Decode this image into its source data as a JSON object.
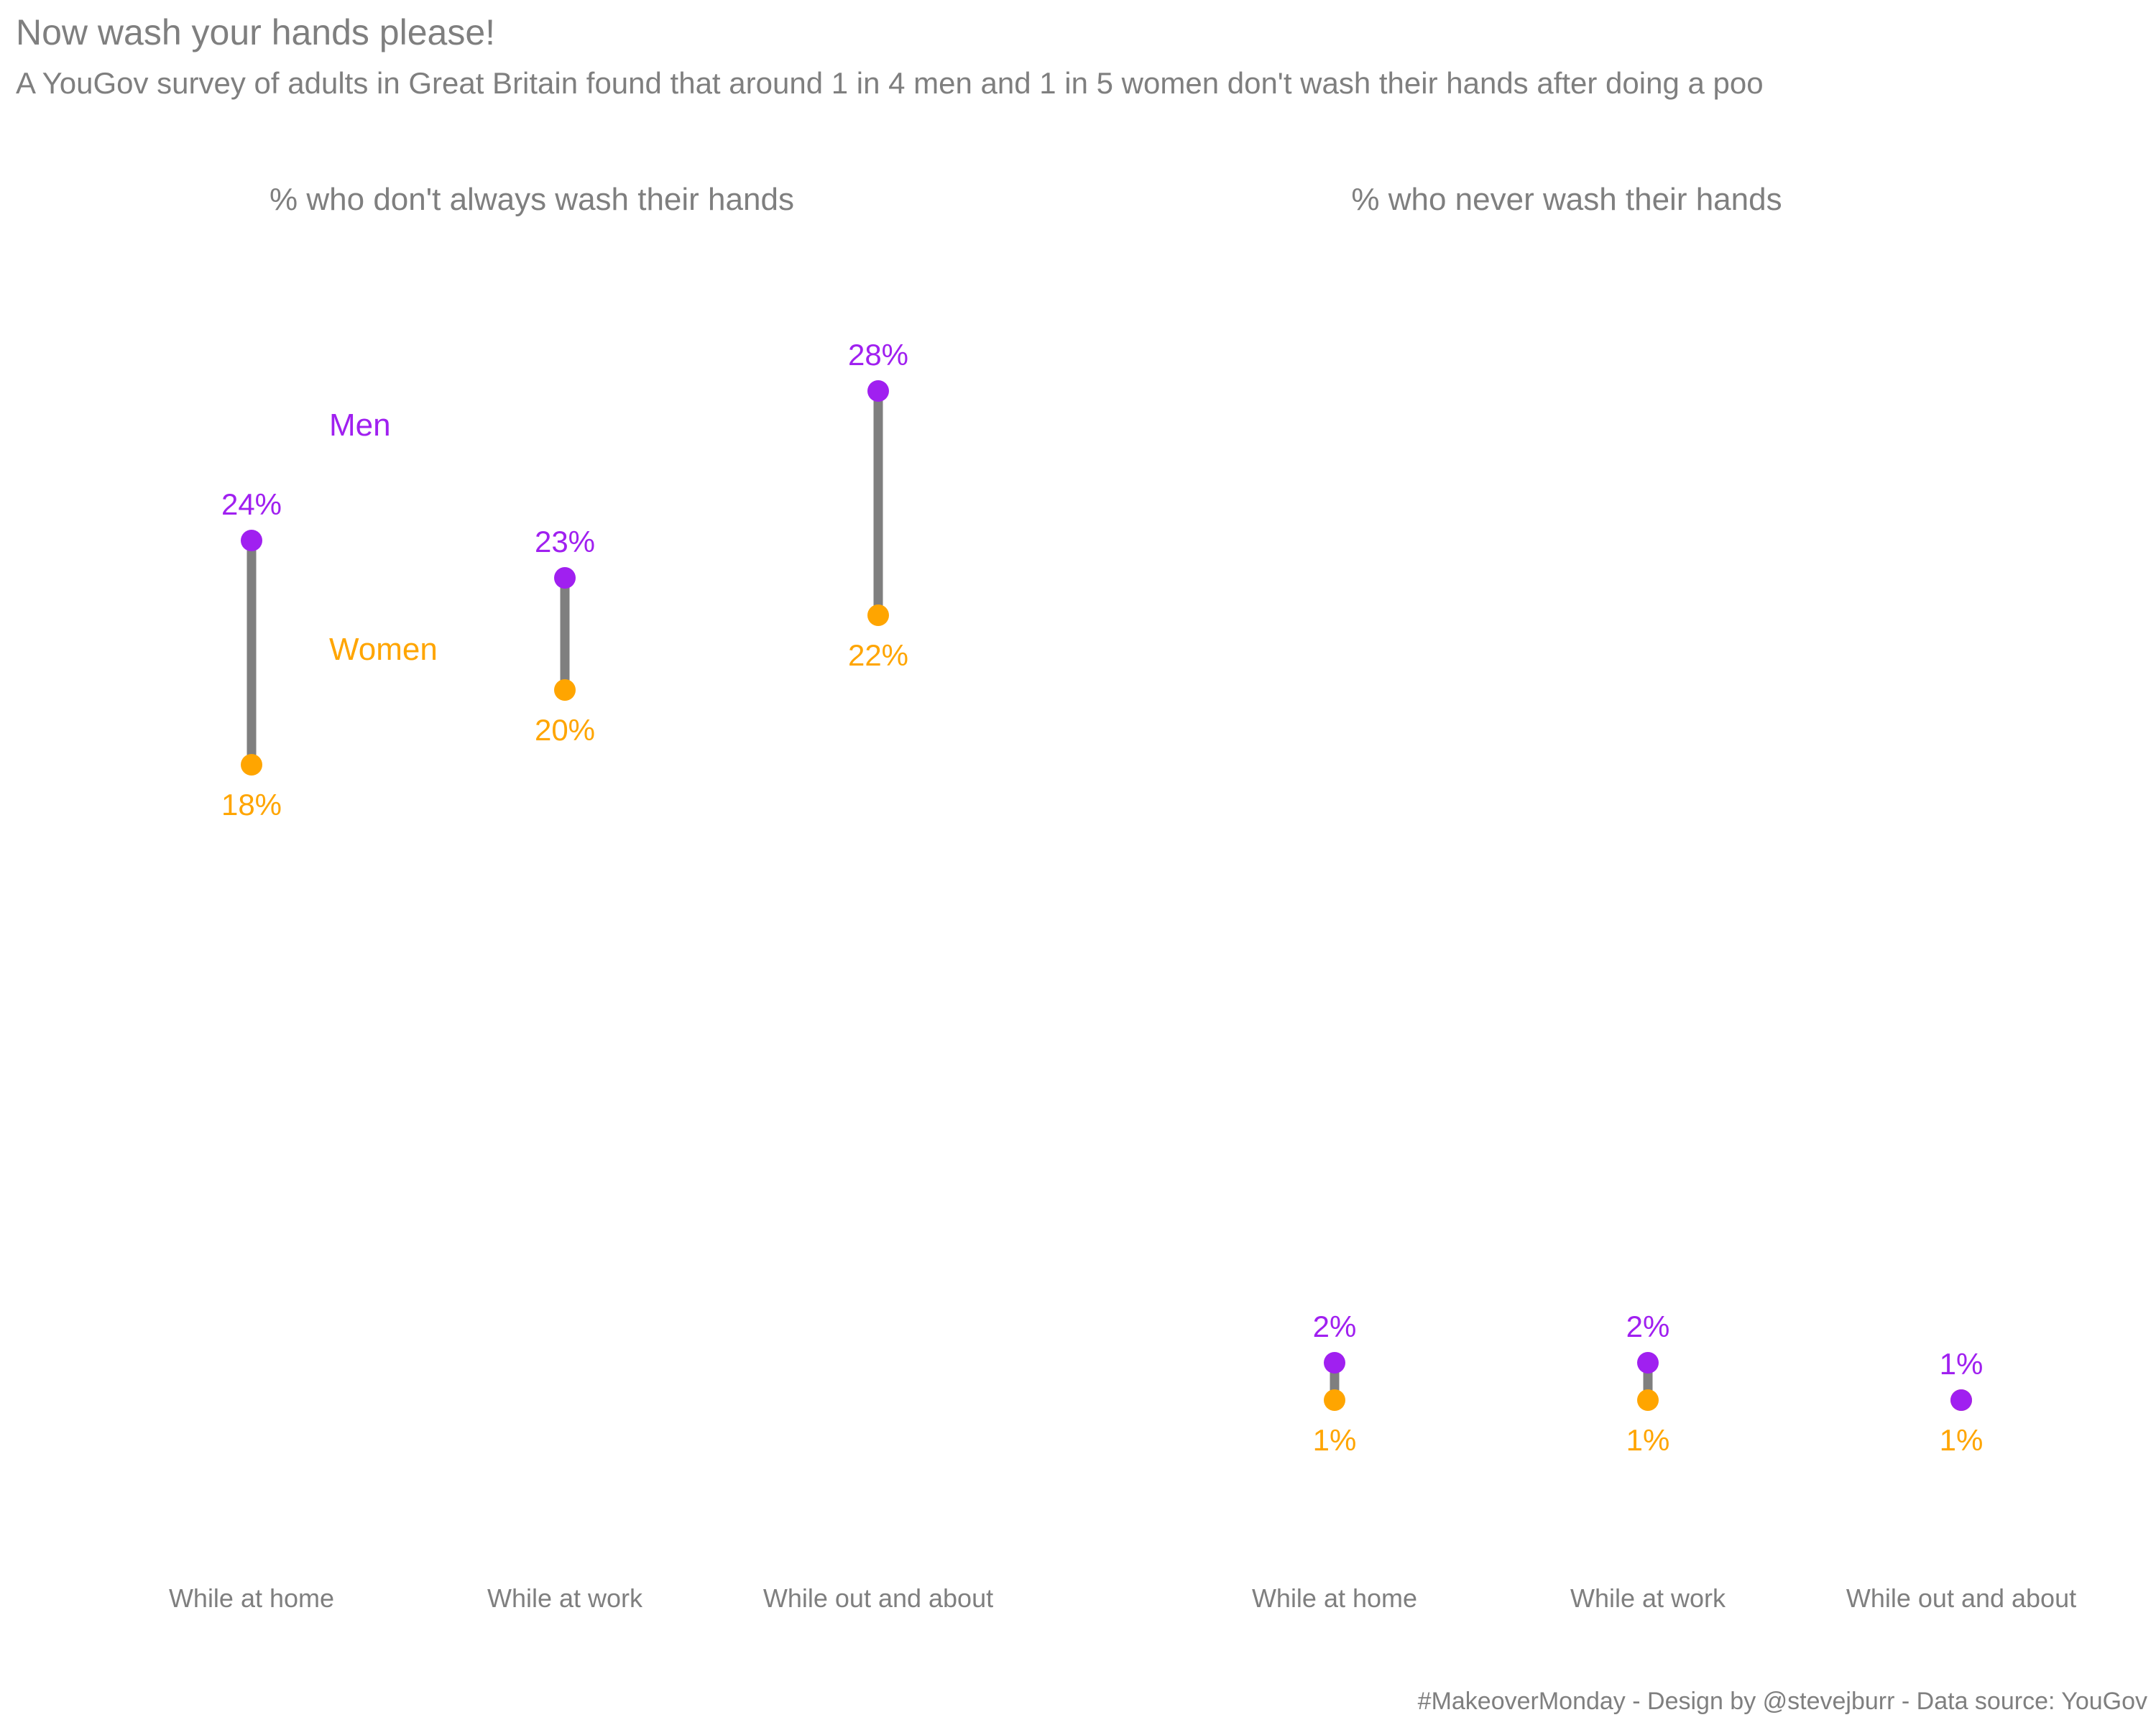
{
  "title": "Now wash your hands please!",
  "subtitle": "A YouGov survey of adults in Great Britain found that around 1 in 4 men and 1 in 5 women don't wash their hands after doing a poo",
  "caption": "#MakeoverMonday - Design by @stevejburr - Data source: YouGov",
  "colors": {
    "men": "#a020f0",
    "women": "#ffa500",
    "connector": "#7f7f7f",
    "text": "#7f7f7f"
  },
  "legend": {
    "men": "Men",
    "women": "Women"
  },
  "chart_data": {
    "type": "dumbbell",
    "ylim": [
      0,
      30
    ],
    "grid": false,
    "legend_placement": "inline-left-panel",
    "panels": [
      {
        "title": "% who don't always wash their hands",
        "categories": [
          "While at home",
          "While at work",
          "While out and about"
        ],
        "men": [
          24,
          23,
          28
        ],
        "women": [
          18,
          20,
          22
        ],
        "men_labels": [
          "24%",
          "23%",
          "28%"
        ],
        "women_labels": [
          "18%",
          "20%",
          "22%"
        ]
      },
      {
        "title": "% who never wash their hands",
        "categories": [
          "While at home",
          "While at work",
          "While out and about"
        ],
        "men": [
          2,
          2,
          1
        ],
        "women": [
          1,
          1,
          1
        ],
        "men_labels": [
          "2%",
          "2%",
          "1%"
        ],
        "women_labels": [
          "1%",
          "1%",
          "1%"
        ]
      }
    ]
  }
}
